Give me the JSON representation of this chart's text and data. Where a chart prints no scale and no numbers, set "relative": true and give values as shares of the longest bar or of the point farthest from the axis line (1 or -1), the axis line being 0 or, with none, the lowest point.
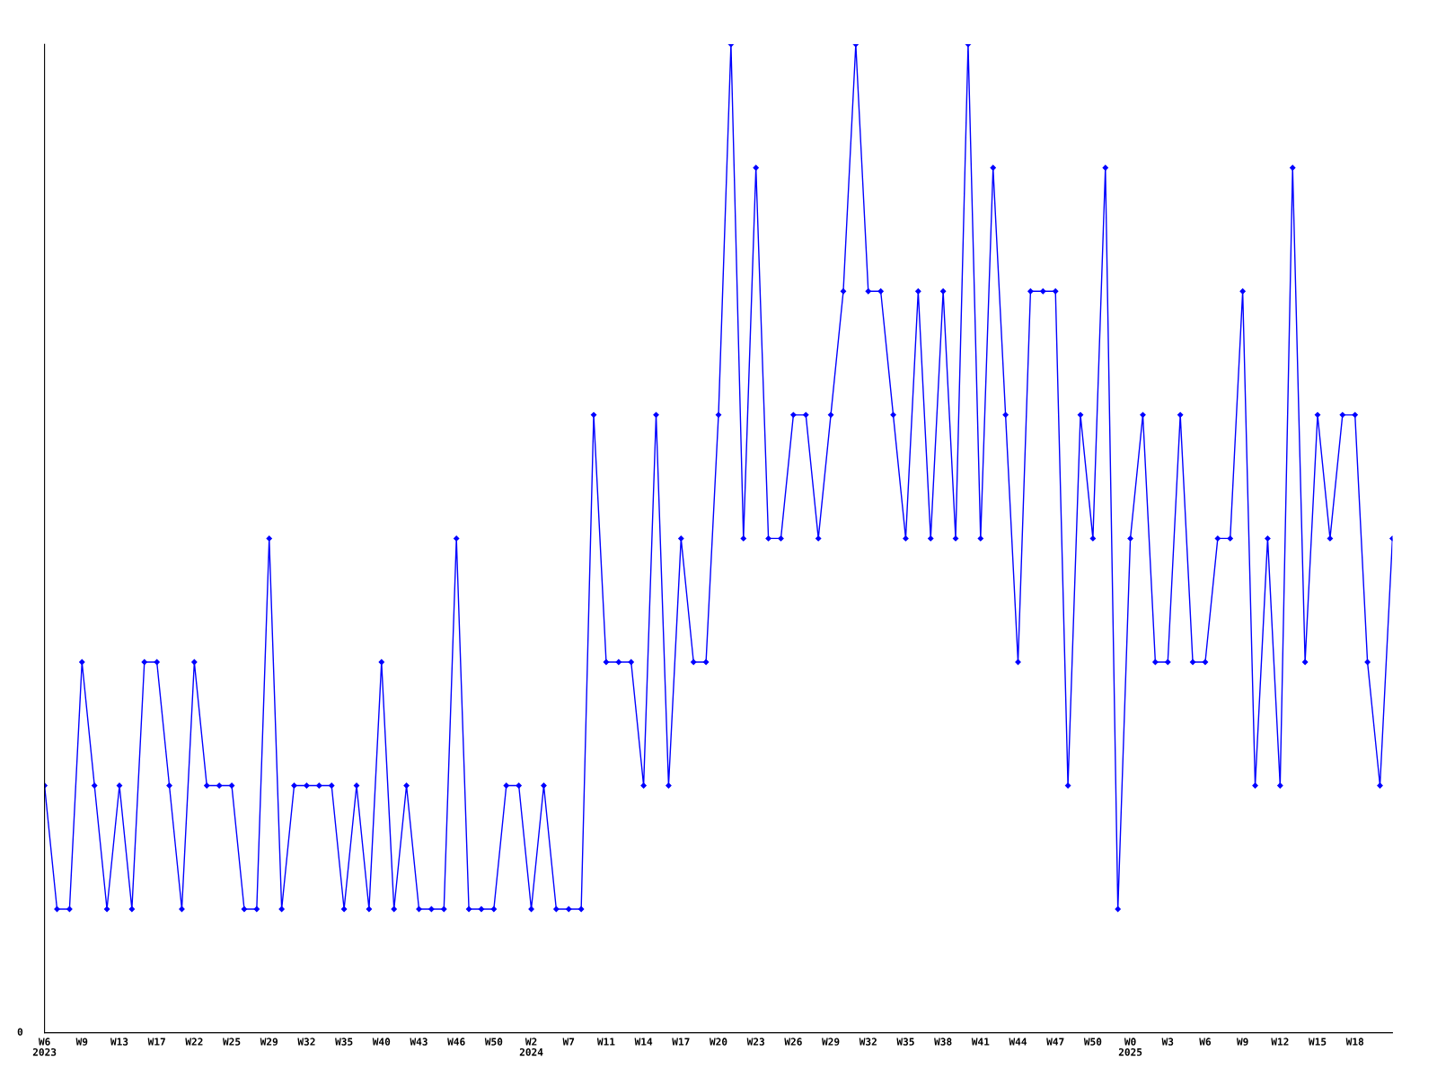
{
  "chart_data": {
    "type": "line",
    "relative": true,
    "categories": [
      "W6\n2023",
      null,
      null,
      "W9",
      null,
      null,
      "W13",
      null,
      null,
      "W17",
      null,
      null,
      "W22",
      null,
      null,
      "W25",
      null,
      null,
      "W29",
      null,
      null,
      "W32",
      null,
      null,
      "W35",
      null,
      null,
      "W40",
      null,
      null,
      "W43",
      null,
      null,
      "W46",
      null,
      null,
      "W50",
      null,
      null,
      "W2\n2024",
      null,
      null,
      "W7",
      null,
      null,
      "W11",
      null,
      null,
      "W14",
      null,
      null,
      "W17",
      null,
      null,
      "W20",
      null,
      null,
      "W23",
      null,
      null,
      "W26",
      null,
      null,
      "W29",
      null,
      null,
      "W32",
      null,
      null,
      "W35",
      null,
      null,
      "W38",
      null,
      null,
      "W41",
      null,
      null,
      "W44",
      null,
      null,
      "W47",
      null,
      null,
      "W50",
      null,
      null,
      "W0\n2025",
      null,
      null,
      "W3",
      null,
      null,
      "W6",
      null,
      null,
      "W9",
      null,
      null,
      "W12",
      null,
      null,
      "W15",
      null,
      null,
      "W18",
      null,
      null,
      null
    ],
    "series": [
      {
        "color": "#0000ff",
        "values": [
          0.25,
          0.125,
          0.125,
          0.375,
          0.25,
          0.125,
          0.25,
          0.125,
          0.375,
          0.375,
          0.25,
          0.125,
          0.375,
          0.25,
          0.25,
          0.25,
          0.125,
          0.125,
          0.5,
          0.125,
          0.25,
          0.25,
          0.25,
          0.25,
          0.125,
          0.25,
          0.125,
          0.375,
          0.125,
          0.25,
          0.125,
          0.125,
          0.125,
          0.5,
          0.125,
          0.125,
          0.125,
          0.25,
          0.25,
          0.125,
          0.25,
          0.125,
          0.125,
          0.125,
          0.625,
          0.375,
          0.375,
          0.375,
          0.25,
          0.625,
          0.25,
          0.5,
          0.375,
          0.375,
          0.625,
          1,
          0.5,
          0.875,
          0.5,
          0.5,
          0.625,
          0.625,
          0.5,
          0.625,
          0.75,
          1,
          0.75,
          0.75,
          0.625,
          0.5,
          0.75,
          0.5,
          0.75,
          0.5,
          1,
          0.5,
          0.875,
          0.625,
          0.375,
          0.75,
          0.75,
          0.75,
          0.25,
          0.625,
          0.5,
          0.875,
          0.125,
          0.5,
          0.625,
          0.375,
          0.375,
          0.625,
          0.375,
          0.375,
          0.5,
          0.5,
          0.75,
          0.25,
          0.5,
          0.25,
          0.875,
          0.375,
          0.625,
          0.5,
          0.625,
          0.625,
          0.375,
          0.25,
          0.5
        ]
      }
    ],
    "annotations": [
      "0"
    ],
    "marker": "diamond",
    "line_style": "solid",
    "grid": false,
    "legend": false
  }
}
